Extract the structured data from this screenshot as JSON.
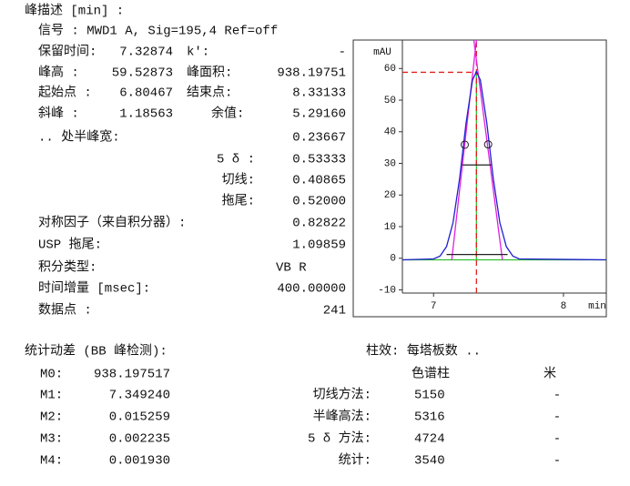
{
  "title": "峰描述 [min] :",
  "signal": "信号 : MWD1 A, Sig=195,4 Ref=off",
  "rows": [
    [
      "保留时间:",
      "7.32874",
      "k':",
      "-"
    ],
    [
      "峰高 :",
      "59.52873",
      "峰面积:",
      "938.19751"
    ],
    [
      "起始点 :",
      "6.80467",
      "结束点:",
      "8.33133"
    ],
    [
      "斜峰 :",
      "1.18563",
      "余值:",
      "5.29160"
    ]
  ],
  "widths": [
    [
      ".. 处半峰宽:",
      "0.23667"
    ],
    [
      "5 δ :",
      "0.53333"
    ],
    [
      "切线:",
      "0.40865"
    ],
    [
      "拖尾:",
      "0.52000"
    ]
  ],
  "others": [
    [
      "对称因子（来自积分器）:",
      "0.82822"
    ],
    [
      "USP 拖尾:",
      "1.09859"
    ],
    [
      "积分类型:",
      "VB R"
    ],
    [
      "时间增量 [msec]:",
      "400.00000"
    ],
    [
      "数据点 :",
      "241"
    ]
  ],
  "stats": {
    "title": "统计动差 (BB 峰检测):",
    "moments": [
      [
        "M0:",
        "938.197517"
      ],
      [
        "M1:",
        "7.349240"
      ],
      [
        "M2:",
        "0.015259"
      ],
      [
        "M3:",
        "0.002235"
      ],
      [
        "M4:",
        "0.001930"
      ]
    ]
  },
  "efficiency": {
    "title": "柱效: 每塔板数 ..",
    "headers": [
      "色谱柱",
      "米"
    ],
    "methods": [
      [
        "切线方法:",
        "5150",
        "-"
      ],
      [
        "半峰高法:",
        "5316",
        "-"
      ],
      [
        "5 δ 方法:",
        "4724",
        "-"
      ],
      [
        "统计:",
        "3540",
        "-"
      ]
    ]
  },
  "chart": {
    "y_label": "mAU",
    "x_label": "min",
    "xlim": [
      6.76,
      8.33
    ],
    "ylim": [
      -11,
      69
    ],
    "xticks": [
      7,
      8
    ],
    "yticks": [
      -10,
      0,
      10,
      20,
      30,
      40,
      50,
      60
    ],
    "lines": [
      {
        "color": "#30c030",
        "x": [
          6.76,
          8.33
        ],
        "y": [
          -0.5,
          -0.5
        ]
      },
      {
        "color": "#30c030",
        "x": [
          7.33,
          7.33
        ],
        "y": [
          -0.5,
          59
        ]
      },
      {
        "color": "#e02020",
        "dash": true,
        "x": [
          6.76,
          7.33
        ],
        "y": [
          58.8,
          58.8
        ]
      },
      {
        "color": "#e02020",
        "dash": true,
        "x": [
          7.33,
          7.33
        ],
        "y": [
          -11,
          69
        ]
      },
      {
        "color": "#e020e0",
        "x": [
          7.14,
          7.33
        ],
        "y": [
          -0.5,
          69
        ]
      },
      {
        "color": "#e020e0",
        "x": [
          7.53,
          7.31
        ],
        "y": [
          -0.5,
          69
        ]
      },
      {
        "color": "#202020",
        "x": [
          7.22,
          7.45
        ],
        "y": [
          29.5,
          29.5
        ]
      },
      {
        "color": "#202020",
        "x": [
          7.1,
          7.57
        ],
        "y": [
          1.2,
          1.2
        ]
      },
      {
        "color": "#2020d0",
        "x": [
          6.76,
          7.0,
          7.05,
          7.1,
          7.15,
          7.2,
          7.25,
          7.3,
          7.33,
          7.36,
          7.41,
          7.46,
          7.51,
          7.56,
          7.61,
          7.66,
          8.33
        ],
        "y": [
          -0.5,
          -0.2,
          0.7,
          3.7,
          11.3,
          25.1,
          42.7,
          56.4,
          59.0,
          56.4,
          42.7,
          25.1,
          11.3,
          3.7,
          0.7,
          -0.2,
          -0.5
        ]
      }
    ],
    "markers": {
      "x": [
        7.24,
        7.42
      ],
      "y": [
        35.9,
        36
      ]
    }
  }
}
